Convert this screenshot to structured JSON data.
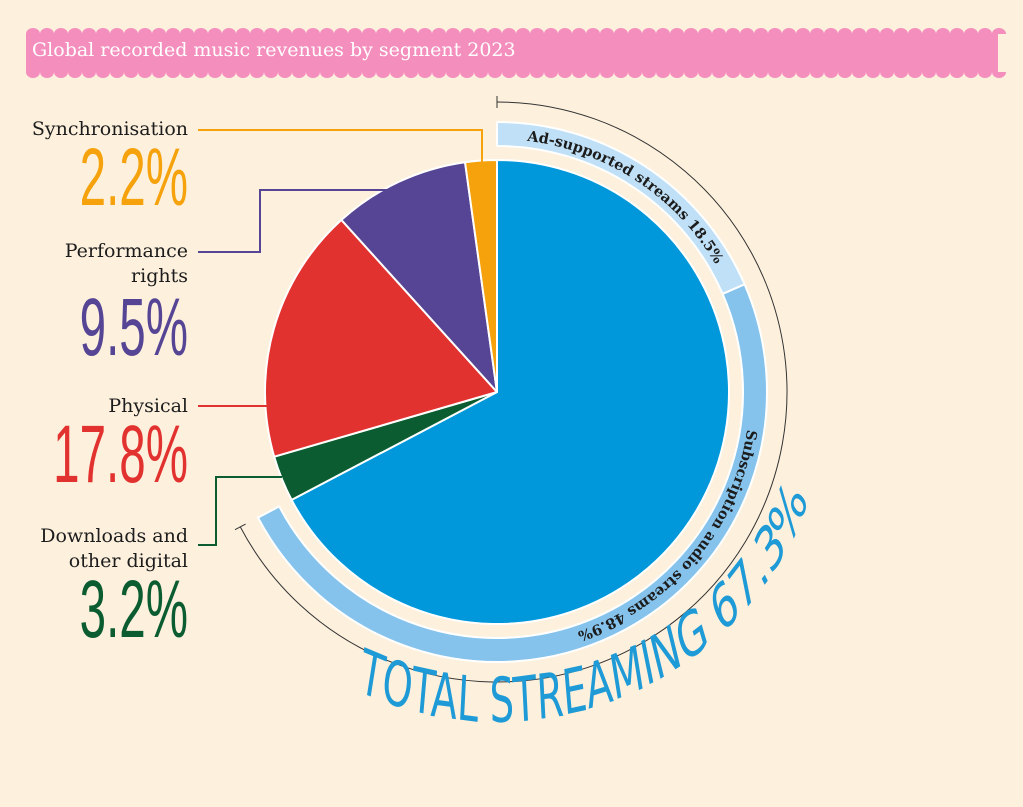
{
  "chart_data": {
    "type": "pie",
    "title": "Global recorded music revenues by segment 2023",
    "slices": [
      {
        "label": "Streaming",
        "value": 67.3,
        "color": "#0098da"
      },
      {
        "label": "Downloads and other digital",
        "value": 3.2,
        "color": "#0b5c30"
      },
      {
        "label": "Physical",
        "value": 17.8,
        "color": "#e2322f"
      },
      {
        "label": "Performance rights",
        "value": 9.5,
        "color": "#564594"
      },
      {
        "label": "Synchronisation",
        "value": 2.2,
        "color": "#f5a20d"
      }
    ],
    "callouts": [
      {
        "label_lines": [
          "Synchronisation"
        ],
        "percent": "2.2%",
        "color": "#f5a20d"
      },
      {
        "label_lines": [
          "Performance",
          "rights"
        ],
        "percent": "9.5%",
        "color": "#564594"
      },
      {
        "label_lines": [
          "Physical"
        ],
        "percent": "17.8%",
        "color": "#e2322f"
      },
      {
        "label_lines": [
          "Downloads and",
          "other digital"
        ],
        "percent": "3.2%",
        "color": "#0b5c30"
      }
    ],
    "streaming_breakdown": [
      {
        "label": "Ad-supported streams",
        "percent": "18.5%",
        "value": 18.5,
        "color": "#bfe0f6"
      },
      {
        "label": "Subscription audio streams",
        "percent": "48.9%",
        "value": 48.9,
        "color": "#86c3ec"
      }
    ],
    "total_label": "TOTAL STREAMING",
    "total_percent": "67.3%",
    "colors": {
      "background": "#fdf1de",
      "title_band": "#f48fbd",
      "total_text": "#1e9ad6"
    }
  }
}
